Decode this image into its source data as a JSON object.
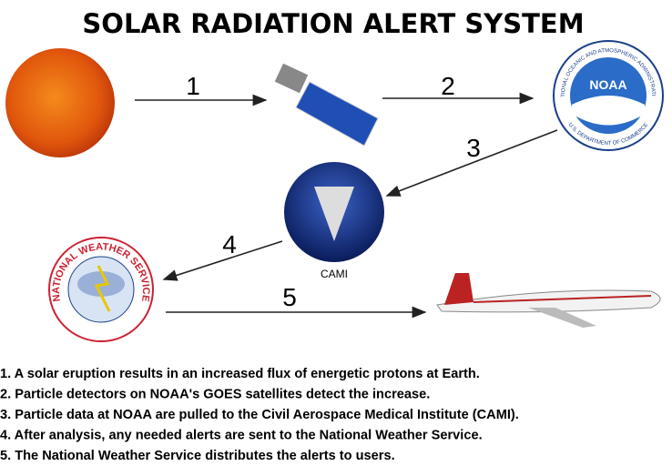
{
  "header": {
    "title": "SOLAR RADIATION ALERT SYSTEM"
  },
  "steps": [
    "1",
    "2",
    "3",
    "4",
    "5"
  ],
  "nodes": {
    "noaa": {
      "label": "NOAA",
      "ring_top": "NATIONAL OCEANIC AND ATMOSPHERIC ADMINISTRATION",
      "ring_bottom": "U.S. DEPARTMENT OF COMMERCE"
    },
    "cami": {
      "label": "CAMI"
    },
    "nws": {
      "ring": "NATIONAL WEATHER SERVICE"
    }
  },
  "notes": [
    "1. A solar eruption results in an increased flux of energetic protons at Earth.",
    "2. Particle detectors on NOAA's GOES satellites detect the increase.",
    "3. Particle data at NOAA are pulled to the Civil Aerospace Medical Institute (CAMI).",
    "4. After analysis, any needed alerts are sent to the National Weather Service.",
    "5. The National Weather Service distributes the alerts to users."
  ]
}
